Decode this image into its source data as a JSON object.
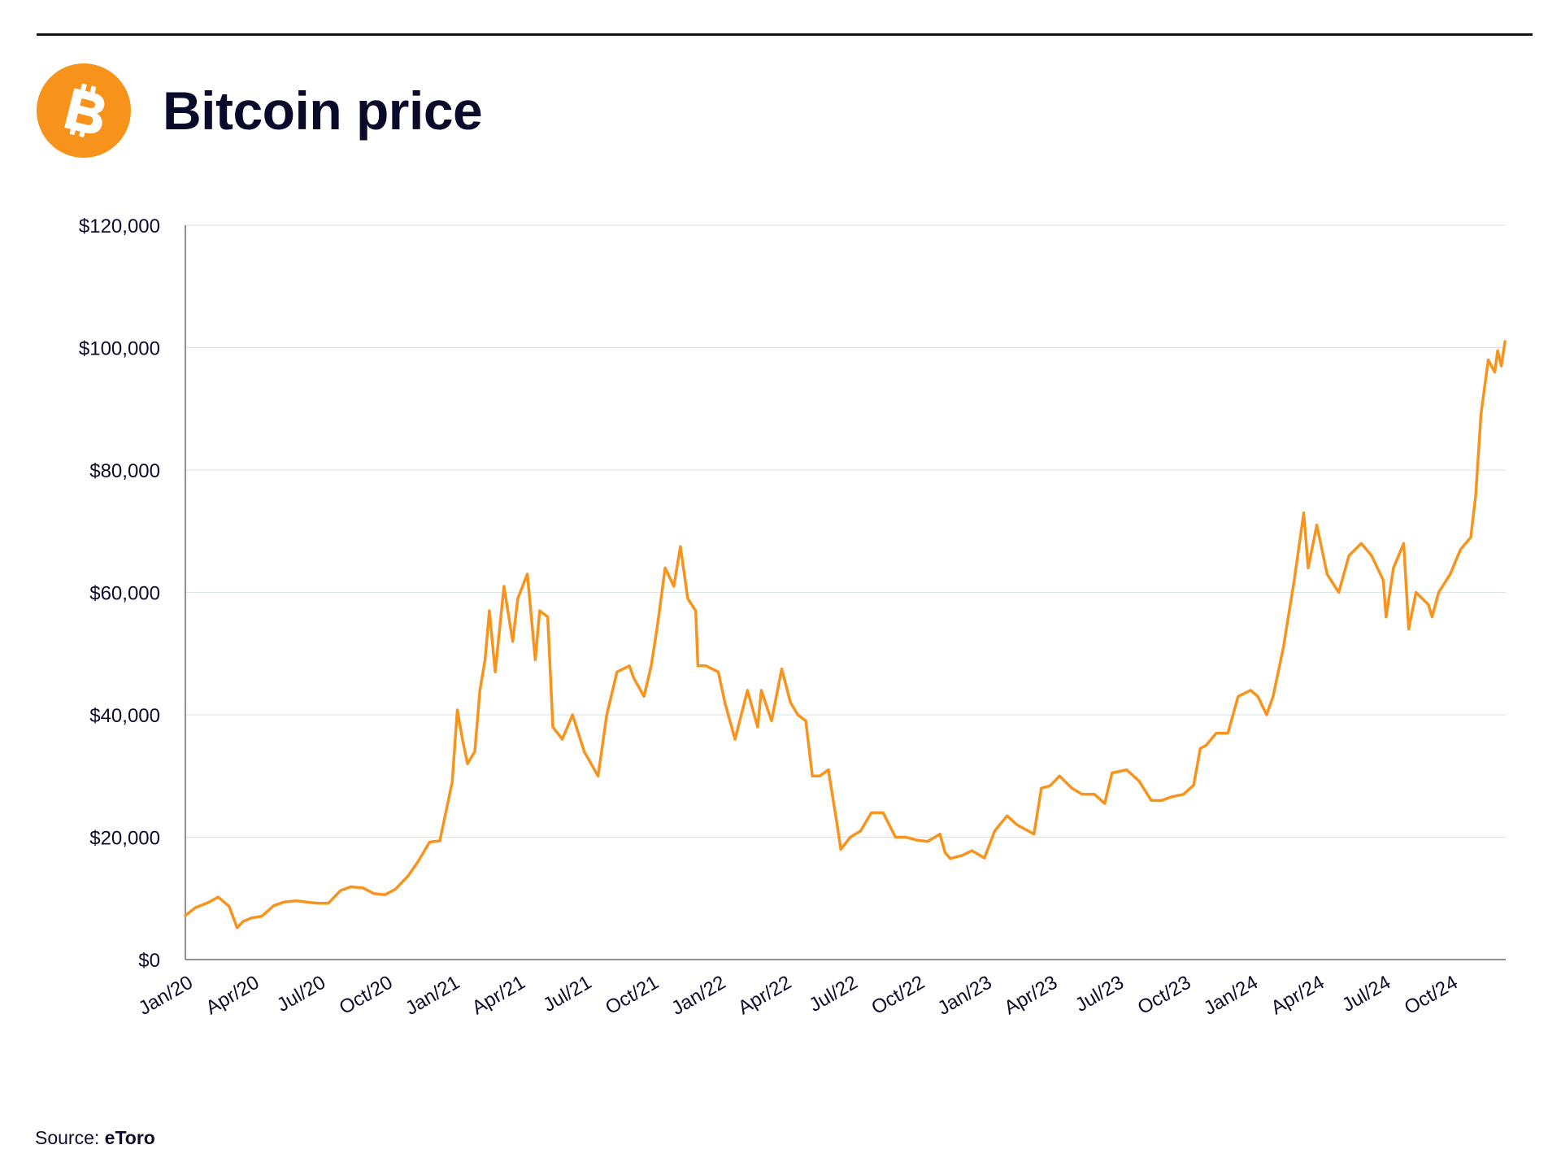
{
  "header": {
    "title": "Bitcoin price",
    "logo_icon": "bitcoin-logo-icon",
    "logo_color": "#f7931a"
  },
  "footer": {
    "source_label": "Source:",
    "source_name": "eToro"
  },
  "chart_data": {
    "type": "line",
    "title": "Bitcoin price",
    "xlabel": "",
    "ylabel": "",
    "ylim": [
      0,
      120000
    ],
    "yticks": [
      "$0",
      "$20,000",
      "$40,000",
      "$60,000",
      "$80,000",
      "$100,000",
      "$120,000"
    ],
    "ytick_values": [
      0,
      20000,
      40000,
      60000,
      80000,
      100000,
      120000
    ],
    "xticks": [
      "Jan/20",
      "Apr/20",
      "Jul/20",
      "Oct/20",
      "Jan/21",
      "Apr/21",
      "Jul/21",
      "Oct/21",
      "Jan/22",
      "Apr/22",
      "Jul/22",
      "Oct/22",
      "Jan/23",
      "Apr/23",
      "Jul/23",
      "Oct/23",
      "Jan/24",
      "Apr/24",
      "Jul/24",
      "Oct/24"
    ],
    "grid": true,
    "line_color": "#f7941d",
    "series": [
      {
        "x": [
          "2020-01-01",
          "2020-01-15",
          "2020-02-01",
          "2020-02-15",
          "2020-03-01",
          "2020-03-12",
          "2020-03-20",
          "2020-04-01",
          "2020-04-15",
          "2020-05-01",
          "2020-05-15",
          "2020-06-01",
          "2020-06-15",
          "2020-07-01",
          "2020-07-15",
          "2020-08-01",
          "2020-08-15",
          "2020-09-01",
          "2020-09-15",
          "2020-10-01",
          "2020-10-15",
          "2020-11-01",
          "2020-11-15",
          "2020-12-01",
          "2020-12-15",
          "2021-01-01",
          "2021-01-08",
          "2021-01-15",
          "2021-01-22",
          "2021-02-01",
          "2021-02-08",
          "2021-02-15",
          "2021-02-21",
          "2021-03-01",
          "2021-03-13",
          "2021-03-25",
          "2021-04-01",
          "2021-04-14",
          "2021-04-25",
          "2021-05-01",
          "2021-05-12",
          "2021-05-19",
          "2021-06-01",
          "2021-06-15",
          "2021-07-01",
          "2021-07-20",
          "2021-08-01",
          "2021-08-15",
          "2021-09-01",
          "2021-09-07",
          "2021-09-21",
          "2021-10-01",
          "2021-10-10",
          "2021-10-20",
          "2021-11-01",
          "2021-11-10",
          "2021-11-20",
          "2021-12-01",
          "2021-12-04",
          "2021-12-15",
          "2022-01-01",
          "2022-01-10",
          "2022-01-24",
          "2022-02-10",
          "2022-02-24",
          "2022-03-01",
          "2022-03-15",
          "2022-03-29",
          "2022-04-10",
          "2022-04-20",
          "2022-05-01",
          "2022-05-10",
          "2022-05-20",
          "2022-06-01",
          "2022-06-13",
          "2022-06-18",
          "2022-07-01",
          "2022-07-15",
          "2022-07-30",
          "2022-08-15",
          "2022-09-01",
          "2022-09-15",
          "2022-10-01",
          "2022-10-15",
          "2022-11-01",
          "2022-11-08",
          "2022-11-15",
          "2022-12-01",
          "2022-12-15",
          "2023-01-01",
          "2023-01-15",
          "2023-02-01",
          "2023-02-15",
          "2023-03-10",
          "2023-03-20",
          "2023-04-01",
          "2023-04-14",
          "2023-05-01",
          "2023-05-15",
          "2023-06-01",
          "2023-06-15",
          "2023-06-25",
          "2023-07-15",
          "2023-08-01",
          "2023-08-18",
          "2023-09-01",
          "2023-09-15",
          "2023-10-01",
          "2023-10-15",
          "2023-10-24",
          "2023-11-01",
          "2023-11-15",
          "2023-12-01",
          "2023-12-15",
          "2024-01-01",
          "2024-01-11",
          "2024-01-23",
          "2024-02-01",
          "2024-02-15",
          "2024-03-01",
          "2024-03-14",
          "2024-03-20",
          "2024-04-01",
          "2024-04-15",
          "2024-05-01",
          "2024-05-15",
          "2024-06-01",
          "2024-06-15",
          "2024-07-01",
          "2024-07-05",
          "2024-07-15",
          "2024-07-29",
          "2024-08-05",
          "2024-08-15",
          "2024-09-01",
          "2024-09-06",
          "2024-09-15",
          "2024-10-01",
          "2024-10-15",
          "2024-10-29",
          "2024-11-05",
          "2024-11-12",
          "2024-11-22",
          "2024-12-01",
          "2024-12-05",
          "2024-12-10",
          "2024-12-15"
        ],
        "y": [
          7200,
          8500,
          9300,
          10200,
          8700,
          5200,
          6200,
          6800,
          7100,
          8800,
          9400,
          9600,
          9400,
          9200,
          9200,
          11300,
          11900,
          11700,
          10800,
          10600,
          11500,
          13600,
          16000,
          19200,
          19400,
          29000,
          40800,
          36000,
          32000,
          34000,
          44000,
          49000,
          57000,
          47000,
          61000,
          52000,
          59000,
          63000,
          49000,
          57000,
          56000,
          38000,
          36000,
          40000,
          34000,
          30000,
          40000,
          47000,
          48000,
          46000,
          43000,
          48000,
          55000,
          64000,
          61000,
          67500,
          59000,
          57000,
          48000,
          48000,
          47000,
          42000,
          36000,
          44000,
          38000,
          44000,
          39000,
          47500,
          42000,
          40000,
          39000,
          30000,
          30000,
          31000,
          22000,
          18000,
          20000,
          21000,
          24000,
          24000,
          20000,
          20000,
          19500,
          19300,
          20500,
          17500,
          16500,
          17000,
          17800,
          16600,
          21000,
          23500,
          22000,
          20500,
          28000,
          28400,
          30000,
          28000,
          27000,
          27000,
          25500,
          30500,
          31000,
          29200,
          26000,
          26000,
          26600,
          27000,
          28500,
          34500,
          35000,
          37000,
          37000,
          43000,
          44000,
          43000,
          40000,
          43000,
          51000,
          62000,
          73000,
          64000,
          71000,
          63000,
          60000,
          66000,
          68000,
          66000,
          62000,
          56000,
          64000,
          68000,
          54000,
          60000,
          58000,
          56000,
          60000,
          63000,
          67000,
          69000,
          76000,
          89000,
          98000,
          96000,
          99500,
          97000,
          101000
        ]
      }
    ]
  }
}
